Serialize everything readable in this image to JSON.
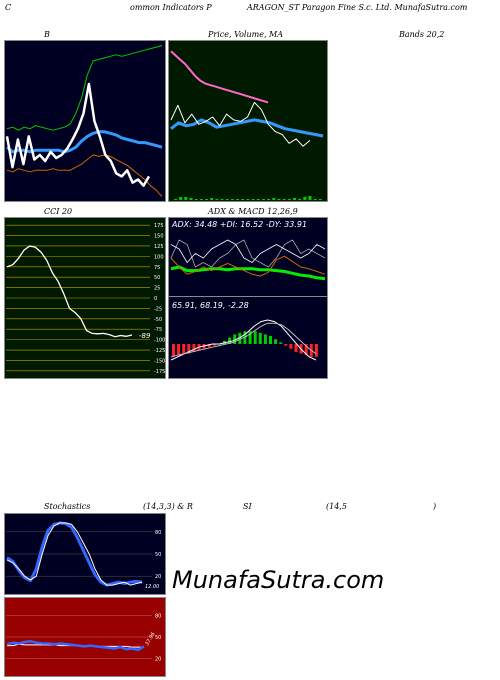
{
  "header": {
    "left": "C",
    "mid1": "ommon  Indicators P",
    "mid2": "ARAGON_ST Paragon  Fine  S.c. Ltd. MunafaSutra.com"
  },
  "titles": {
    "bb": "B",
    "price": "Price,  Volume,  MA",
    "bands": "Bands 20,2",
    "cci": "CCI 20",
    "adx": "ADX  & MACD 12,26,9",
    "stoch1": "Stochastics",
    "stoch2": "(14,3,3) & R",
    "stoch3": "SI",
    "stoch4": "(14,5",
    "stoch5": ")"
  },
  "watermark": "MunafaSutra.com",
  "chart_data": [
    {
      "type": "line",
      "id": "bollinger",
      "series": [
        {
          "values": [
            45,
            46,
            44,
            46,
            45,
            47,
            46,
            45,
            44,
            45,
            46,
            48,
            55,
            65,
            80,
            89,
            90,
            91,
            92,
            93,
            92,
            93,
            94,
            95,
            96,
            97,
            98,
            99
          ]
        },
        {
          "values": [
            33,
            30,
            31,
            31,
            30,
            31,
            31,
            31,
            31,
            31,
            30,
            31,
            33,
            37,
            40,
            42,
            43,
            43,
            42,
            41,
            39,
            38,
            37,
            36,
            36,
            35,
            34,
            33
          ]
        },
        {
          "values": [
            18,
            17,
            19,
            18,
            17,
            18,
            18,
            18,
            19,
            18,
            18,
            18,
            20,
            22,
            25,
            28,
            27,
            28,
            27,
            25,
            23,
            21,
            18,
            15,
            12,
            8,
            5,
            1
          ]
        },
        {
          "values": [
            40,
            20,
            38,
            22,
            40,
            25,
            28,
            24,
            30,
            26,
            28,
            32,
            38,
            45,
            55,
            74,
            50,
            40,
            28,
            24,
            16,
            14,
            18,
            10,
            12,
            8,
            14
          ]
        }
      ],
      "ylim": [
        0,
        100
      ]
    },
    {
      "type": "line",
      "id": "price-volume",
      "series": [
        {
          "values": [
            95,
            92,
            89,
            86,
            82,
            78,
            75,
            73,
            72,
            71,
            70,
            69,
            68,
            67,
            66,
            65,
            64,
            63,
            62,
            61,
            60
          ]
        },
        {
          "values": [
            42,
            46,
            44,
            45,
            48,
            46,
            43,
            44,
            45,
            46,
            47,
            48,
            47,
            46,
            44,
            42,
            41,
            40,
            39,
            38,
            37
          ]
        },
        {
          "values": [
            48,
            58,
            46,
            52,
            45,
            47,
            50,
            44,
            52,
            48,
            47,
            50,
            60,
            55,
            45,
            40,
            38,
            32,
            35,
            30,
            34
          ]
        }
      ],
      "volume": [
        1,
        3,
        3,
        2,
        1,
        1,
        1,
        2,
        1,
        1,
        1,
        1,
        1,
        1,
        1,
        1,
        1,
        1,
        1,
        2,
        1,
        1,
        1,
        2,
        1,
        3,
        4,
        1,
        1
      ],
      "ylim": [
        0,
        100
      ]
    },
    {
      "type": "line",
      "id": "cci",
      "ticks": [
        "175",
        "150",
        "125",
        "100",
        "75",
        "50",
        "25",
        "0",
        "-25",
        "-50",
        "-75",
        "-100",
        "-125",
        "-150",
        "-175"
      ],
      "last_label": "-89",
      "values": [
        75,
        80,
        95,
        115,
        125,
        122,
        110,
        90,
        60,
        40,
        10,
        -25,
        -35,
        -50,
        -78,
        -85,
        -86,
        -85,
        -88,
        -93,
        -90,
        -92,
        -89
      ],
      "ylim": [
        -185,
        185
      ]
    },
    {
      "type": "line",
      "id": "adx",
      "readout": "ADX: 34.48  +DI: 16.52  -DY: 33.91",
      "series": [
        {
          "values": [
            40,
            60,
            55,
            30,
            35,
            30,
            40,
            45,
            55,
            60,
            40,
            35,
            30,
            40,
            55,
            60,
            45,
            50,
            45,
            40
          ]
        },
        {
          "values": [
            55,
            50,
            35,
            45,
            40,
            50,
            55,
            60,
            55,
            40,
            35,
            45,
            50,
            55,
            50,
            45,
            40,
            45,
            55,
            50
          ]
        },
        {
          "values": [
            28,
            30,
            26,
            26,
            27,
            28,
            28,
            27,
            28,
            28,
            28,
            27,
            27,
            26,
            25,
            23,
            21,
            20,
            18,
            17
          ]
        },
        {
          "values": [
            40,
            30,
            22,
            25,
            30,
            26,
            30,
            34,
            30,
            26,
            22,
            20,
            24,
            38,
            42,
            36,
            30,
            28,
            25,
            22
          ]
        }
      ],
      "ylim": [
        0,
        70
      ]
    },
    {
      "type": "bar",
      "id": "macd",
      "readout": "65.91,  68.19,  -2.28",
      "histogram": [
        -8,
        -7,
        -6,
        -6,
        -5,
        -4,
        -3,
        -2,
        -1,
        0,
        2,
        4,
        6,
        7,
        8,
        8,
        8,
        7,
        6,
        5,
        3,
        1,
        -1,
        -3,
        -5,
        -6,
        -7,
        -8,
        -8
      ],
      "series": [
        {
          "values": [
            -10,
            -8,
            -6,
            -4,
            -2,
            -1,
            0,
            0,
            1,
            2,
            4,
            7,
            11,
            14,
            15,
            14,
            11,
            6,
            1,
            -4,
            -8,
            -10
          ]
        },
        {
          "values": [
            -8,
            -7,
            -6,
            -5,
            -4,
            -3,
            -2,
            -1,
            0,
            1,
            3,
            5,
            8,
            11,
            13,
            13,
            12,
            9,
            5,
            1,
            -3,
            -6
          ]
        }
      ],
      "ylim": [
        -20,
        20
      ]
    },
    {
      "type": "line",
      "id": "stochastics",
      "ticks": [
        "80",
        "50",
        "20"
      ],
      "last_label": "12.00",
      "series": [
        {
          "values": [
            42,
            38,
            30,
            20,
            15,
            20,
            50,
            75,
            88,
            92,
            92,
            90,
            80,
            65,
            50,
            30,
            15,
            8,
            8,
            10,
            12,
            8,
            10,
            12
          ]
        },
        {
          "values": [
            45,
            40,
            28,
            18,
            14,
            30,
            60,
            82,
            90,
            92,
            91,
            86,
            72,
            55,
            38,
            22,
            12,
            8,
            10,
            12,
            10,
            12,
            13,
            12
          ]
        }
      ],
      "ylim": [
        0,
        100
      ]
    },
    {
      "type": "line",
      "id": "rsi",
      "ticks": [
        "80",
        "50",
        "20"
      ],
      "last_label": "37.96",
      "series": [
        {
          "values": [
            40,
            42,
            41,
            43,
            44,
            42,
            41,
            41,
            40,
            41,
            40,
            39,
            38,
            37,
            38,
            37,
            36,
            35,
            34,
            36,
            33,
            34,
            32,
            37
          ]
        },
        {
          "values": [
            38,
            38,
            40,
            39,
            39,
            39,
            39,
            39,
            39,
            38,
            38,
            38,
            38,
            38,
            38,
            37,
            37,
            37,
            37,
            37,
            37,
            36,
            36,
            36
          ]
        }
      ],
      "ylim": [
        0,
        100
      ]
    }
  ]
}
